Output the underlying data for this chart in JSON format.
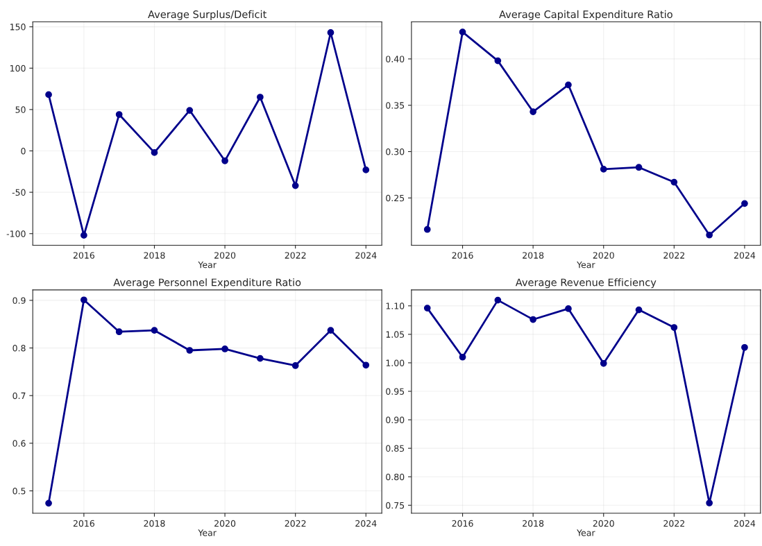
{
  "chart_data": [
    {
      "type": "line",
      "title": "Average Surplus/Deficit",
      "xlabel": "Year",
      "x": [
        2015,
        2016,
        2017,
        2018,
        2019,
        2020,
        2021,
        2022,
        2023,
        2024
      ],
      "series": [
        {
          "color": "#00008b",
          "values": [
            68,
            -102,
            44,
            -2,
            49,
            -12,
            65,
            -42,
            143,
            -23
          ]
        }
      ],
      "xlim": [
        2014.55,
        2024.45
      ],
      "xticks": [
        2016,
        2018,
        2020,
        2022,
        2024
      ],
      "ylim": [
        -114,
        156
      ],
      "yticks": [
        -100,
        -50,
        0,
        50,
        100,
        150
      ],
      "grid": true,
      "marker": "circle",
      "line_style": "solid"
    },
    {
      "type": "line",
      "title": "Average Capital Expenditure Ratio",
      "xlabel": "Year",
      "x": [
        2015,
        2016,
        2017,
        2018,
        2019,
        2020,
        2021,
        2022,
        2023,
        2024
      ],
      "series": [
        {
          "color": "#00008b",
          "values": [
            0.216,
            0.429,
            0.398,
            0.343,
            0.372,
            0.281,
            0.283,
            0.267,
            0.21,
            0.244
          ]
        }
      ],
      "xlim": [
        2014.55,
        2024.45
      ],
      "xticks": [
        2016,
        2018,
        2020,
        2022,
        2024
      ],
      "ylim": [
        0.199,
        0.44
      ],
      "yticks": [
        {
          "value": 0.25,
          "label": "0.25"
        },
        {
          "value": 0.3,
          "label": "0.30"
        },
        {
          "value": 0.35,
          "label": "0.35"
        },
        {
          "value": 0.4,
          "label": "0.40"
        }
      ],
      "grid": true,
      "marker": "circle",
      "line_style": "solid"
    },
    {
      "type": "line",
      "title": "Average Personnel Expenditure Ratio",
      "xlabel": "Year",
      "x": [
        2015,
        2016,
        2017,
        2018,
        2019,
        2020,
        2021,
        2022,
        2023,
        2024
      ],
      "series": [
        {
          "color": "#00008b",
          "values": [
            0.474,
            0.901,
            0.834,
            0.837,
            0.795,
            0.798,
            0.778,
            0.763,
            0.837,
            0.764
          ]
        }
      ],
      "xlim": [
        2014.55,
        2024.45
      ],
      "xticks": [
        2016,
        2018,
        2020,
        2022,
        2024
      ],
      "ylim": [
        0.453,
        0.922
      ],
      "yticks": [
        0.5,
        0.6,
        0.7,
        0.8,
        0.9
      ],
      "grid": true,
      "marker": "circle",
      "line_style": "solid"
    },
    {
      "type": "line",
      "title": "Average Revenue Efficiency",
      "xlabel": "Year",
      "x": [
        2015,
        2016,
        2017,
        2018,
        2019,
        2020,
        2021,
        2022,
        2023,
        2024
      ],
      "series": [
        {
          "color": "#00008b",
          "values": [
            1.096,
            1.01,
            1.11,
            1.076,
            1.095,
            0.999,
            1.093,
            1.062,
            0.754,
            1.027
          ]
        }
      ],
      "xlim": [
        2014.55,
        2024.45
      ],
      "xticks": [
        2016,
        2018,
        2020,
        2022,
        2024
      ],
      "ylim": [
        0.736,
        1.128
      ],
      "yticks": [
        {
          "value": 0.75,
          "label": "0.75"
        },
        {
          "value": 0.8,
          "label": "0.80"
        },
        {
          "value": 0.85,
          "label": "0.85"
        },
        {
          "value": 0.9,
          "label": "0.90"
        },
        {
          "value": 0.95,
          "label": "0.95"
        },
        {
          "value": 1.0,
          "label": "1.00"
        },
        {
          "value": 1.05,
          "label": "1.05"
        },
        {
          "value": 1.1,
          "label": "1.10"
        }
      ],
      "grid": true,
      "marker": "circle",
      "line_style": "solid"
    }
  ]
}
